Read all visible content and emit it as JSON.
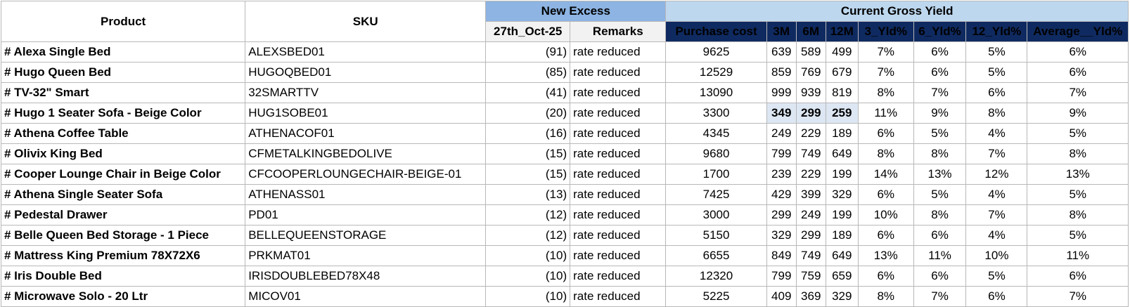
{
  "headers": {
    "product": "Product",
    "sku": "SKU",
    "new_excess": "New Excess",
    "current_gross_yield": "Current Gross Yield",
    "date": "27th_Oct-25",
    "remarks": "Remarks",
    "purchase_cost": "Purchase cost",
    "m3": "3M",
    "m6": "6M",
    "m12": "12M",
    "yld3": "3_Yld%",
    "yld6": "6_Yld%",
    "yld12": "12_Yld%",
    "avg": "Average__Yld%"
  },
  "rows": [
    {
      "product": "# Alexa Single Bed",
      "sku": "ALEXSBED01",
      "excess": "(91)",
      "remark": "rate reduced",
      "cost": "9625",
      "m3": "639",
      "m6": "589",
      "m12": "499",
      "y3": "7%",
      "y6": "6%",
      "y12": "5%",
      "avg": "6%"
    },
    {
      "product": "# Hugo Queen Bed",
      "sku": "HUGOQBED01",
      "excess": "(85)",
      "remark": "rate reduced",
      "cost": "12529",
      "m3": "859",
      "m6": "769",
      "m12": "679",
      "y3": "7%",
      "y6": "6%",
      "y12": "5%",
      "avg": "6%"
    },
    {
      "product": "# TV-32\" Smart",
      "sku": "32SMARTTV",
      "excess": "(41)",
      "remark": "rate reduced",
      "cost": "13090",
      "m3": "999",
      "m6": "939",
      "m12": "819",
      "y3": "8%",
      "y6": "7%",
      "y12": "6%",
      "avg": "7%"
    },
    {
      "product": "# Hugo 1 Seater Sofa - Beige Color",
      "sku": "HUG1SOBE01",
      "excess": "(20)",
      "remark": "rate reduced",
      "cost": "3300",
      "m3": "349",
      "m6": "299",
      "m12": "259",
      "y3": "11%",
      "y6": "9%",
      "y12": "8%",
      "avg": "9%"
    },
    {
      "product": "# Athena Coffee Table",
      "sku": "ATHENACOF01",
      "excess": "(16)",
      "remark": "rate reduced",
      "cost": "4345",
      "m3": "249",
      "m6": "229",
      "m12": "189",
      "y3": "6%",
      "y6": "5%",
      "y12": "4%",
      "avg": "5%"
    },
    {
      "product": "# Olivix King Bed",
      "sku": "CFMETALKINGBEDOLIVE",
      "excess": "(15)",
      "remark": "rate reduced",
      "cost": "9680",
      "m3": "799",
      "m6": "749",
      "m12": "649",
      "y3": "8%",
      "y6": "8%",
      "y12": "7%",
      "avg": "8%"
    },
    {
      "product": "# Cooper Lounge Chair in Beige Color",
      "sku": "CFCOOPERLOUNGECHAIR-BEIGE-01",
      "excess": "(15)",
      "remark": "rate reduced",
      "cost": "1700",
      "m3": "239",
      "m6": "229",
      "m12": "199",
      "y3": "14%",
      "y6": "13%",
      "y12": "12%",
      "avg": "13%"
    },
    {
      "product": "# Athena Single Seater Sofa",
      "sku": "ATHENASS01",
      "excess": "(13)",
      "remark": "rate reduced",
      "cost": "7425",
      "m3": "429",
      "m6": "399",
      "m12": "329",
      "y3": "6%",
      "y6": "5%",
      "y12": "4%",
      "avg": "5%"
    },
    {
      "product": "# Pedestal Drawer",
      "sku": "PD01",
      "excess": "(12)",
      "remark": "rate reduced",
      "cost": "3000",
      "m3": "299",
      "m6": "249",
      "m12": "199",
      "y3": "10%",
      "y6": "8%",
      "y12": "7%",
      "avg": "8%"
    },
    {
      "product": "# Belle Queen Bed Storage - 1 Piece",
      "sku": "BELLEQUEENSTORAGE",
      "excess": "(12)",
      "remark": "rate reduced",
      "cost": "5150",
      "m3": "329",
      "m6": "299",
      "m12": "189",
      "y3": "6%",
      "y6": "6%",
      "y12": "4%",
      "avg": "5%"
    },
    {
      "product": "# Mattress King Premium 78X72X6",
      "sku": "PRKMAT01",
      "excess": "(10)",
      "remark": "rate reduced",
      "cost": "6655",
      "m3": "849",
      "m6": "749",
      "m12": "649",
      "y3": "13%",
      "y6": "11%",
      "y12": "10%",
      "avg": "11%"
    },
    {
      "product": "# Iris Double Bed",
      "sku": "IRISDOUBLEBED78X48",
      "excess": "(10)",
      "remark": "rate reduced",
      "cost": "12320",
      "m3": "799",
      "m6": "759",
      "m12": "659",
      "y3": "6%",
      "y6": "6%",
      "y12": "5%",
      "avg": "6%"
    },
    {
      "product": "# Microwave Solo - 20 Ltr",
      "sku": "MICOV01",
      "excess": "(10)",
      "remark": "rate reduced",
      "cost": "5225",
      "m3": "409",
      "m6": "369",
      "m12": "329",
      "y3": "8%",
      "y6": "7%",
      "y12": "6%",
      "avg": "7%"
    }
  ]
}
